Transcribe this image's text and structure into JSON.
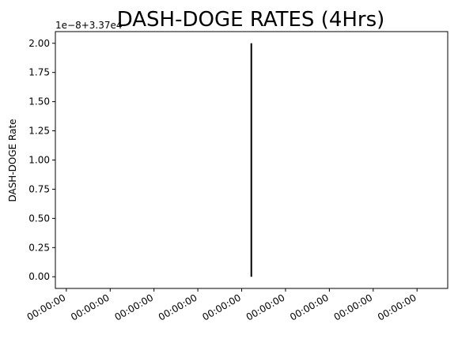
{
  "chart_data": {
    "type": "line",
    "title": "DASH-DOGE RATES (4Hrs)",
    "xlabel": "",
    "ylabel": "DASH-DOGE Rate",
    "y_offset_text": "1e−8+3.37e4",
    "ylim": [
      -0.1,
      2.1
    ],
    "y_ticks": [
      0.0,
      0.25,
      0.5,
      0.75,
      1.0,
      1.25,
      1.5,
      1.75,
      2.0
    ],
    "y_tick_labels": [
      "0.00",
      "0.25",
      "0.50",
      "0.75",
      "1.00",
      "1.25",
      "1.50",
      "1.75",
      "2.00"
    ],
    "x_tick_labels": [
      "00:00:00",
      "00:00:00",
      "00:00:00",
      "00:00:00",
      "00:00:00",
      "00:00:00",
      "00:00:00",
      "00:00:00",
      "00:00:00"
    ],
    "xlim": [
      -0.25,
      8.7
    ],
    "x_tick_positions": [
      0,
      1,
      2,
      3,
      4,
      5,
      6,
      7,
      8
    ],
    "series": [
      {
        "name": "DASH-DOGE Rate",
        "color": "#000000",
        "x": [
          4.22,
          4.22
        ],
        "y": [
          0.0,
          2.0
        ]
      }
    ],
    "grid": false
  }
}
